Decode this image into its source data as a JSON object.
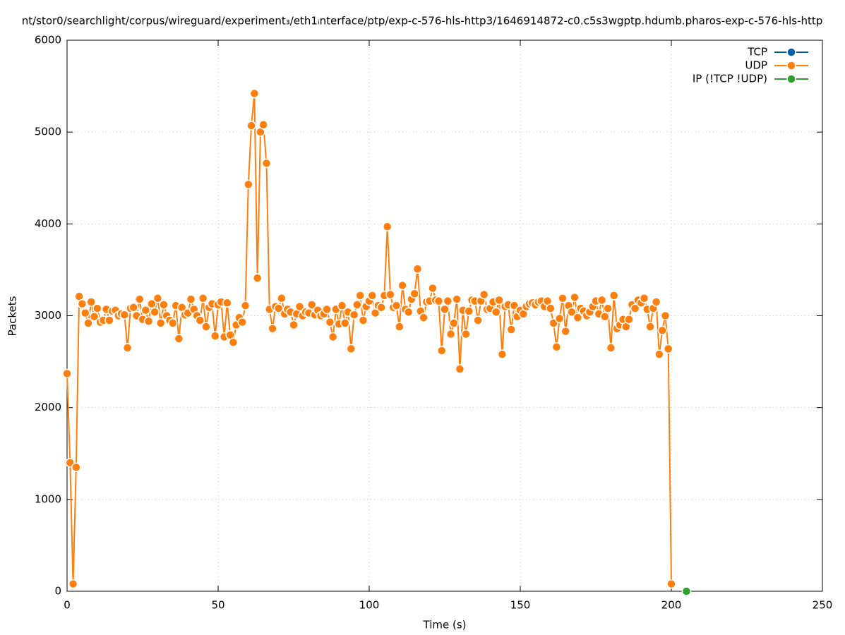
{
  "chart_data": {
    "type": "line",
    "title": "nt/stor0/searchlight/corpus/wireguard/experiment₃/eth1ᵢnterface/ptp/exp-c-576-hls-http3/1646914872-c0.c5s3wgptp.hdumb.pharos-exp-c-576-hls-http",
    "x_label": "Time (s)",
    "y_label": "Packets",
    "xlim": [
      0,
      250
    ],
    "xticks": [
      0,
      50,
      100,
      150,
      200,
      250
    ],
    "ylim": [
      0,
      6000
    ],
    "yticks": [
      0,
      1000,
      2000,
      3000,
      4000,
      5000,
      6000
    ],
    "grid": true,
    "legend": "top-right",
    "series": [
      {
        "name": "TCP",
        "color": "#0060ad",
        "x": [],
        "values": []
      },
      {
        "name": "UDP",
        "color": "#ff7f0e",
        "x": [
          0,
          1,
          2,
          3,
          4,
          5,
          6,
          7,
          8,
          9,
          10,
          11,
          12,
          13,
          14,
          15,
          16,
          17,
          18,
          19,
          20,
          21,
          22,
          23,
          24,
          25,
          26,
          27,
          28,
          29,
          30,
          31,
          32,
          33,
          34,
          35,
          36,
          37,
          38,
          39,
          40,
          41,
          42,
          43,
          44,
          45,
          46,
          47,
          48,
          49,
          50,
          51,
          52,
          53,
          54,
          55,
          56,
          57,
          58,
          59,
          60,
          61,
          62,
          63,
          64,
          65,
          66,
          67,
          68,
          69,
          70,
          71,
          72,
          73,
          74,
          75,
          76,
          77,
          78,
          79,
          80,
          81,
          82,
          83,
          84,
          85,
          86,
          87,
          88,
          89,
          90,
          91,
          92,
          93,
          94,
          95,
          96,
          97,
          98,
          99,
          100,
          101,
          102,
          103,
          104,
          105,
          106,
          107,
          108,
          109,
          110,
          111,
          112,
          113,
          114,
          115,
          116,
          117,
          118,
          119,
          120,
          121,
          122,
          123,
          124,
          125,
          126,
          127,
          128,
          129,
          130,
          131,
          132,
          133,
          134,
          135,
          136,
          137,
          138,
          139,
          140,
          141,
          142,
          143,
          144,
          145,
          146,
          147,
          148,
          149,
          150,
          151,
          152,
          153,
          154,
          155,
          156,
          157,
          158,
          159,
          160,
          161,
          162,
          163,
          164,
          165,
          166,
          167,
          168,
          169,
          170,
          171,
          172,
          173,
          174,
          175,
          176,
          177,
          178,
          179,
          180,
          181,
          182,
          183,
          184,
          185,
          186,
          187,
          188,
          189,
          190,
          191,
          192,
          193,
          194,
          195,
          196,
          197,
          198,
          199,
          200
        ],
        "values": [
          2370,
          1400,
          80,
          1350,
          3210,
          3130,
          3030,
          2920,
          3150,
          2990,
          3080,
          2930,
          2950,
          3070,
          2950,
          3050,
          3060,
          3000,
          3020,
          3010,
          2650,
          3080,
          3090,
          3000,
          3180,
          2960,
          3060,
          2940,
          3130,
          3040,
          3190,
          2920,
          3120,
          3000,
          2950,
          2920,
          3110,
          2750,
          3090,
          3010,
          3030,
          3180,
          3070,
          3000,
          2950,
          3190,
          2880,
          3090,
          3130,
          2780,
          3120,
          3150,
          2770,
          3140,
          2790,
          2710,
          2900,
          2980,
          2930,
          3110,
          4430,
          5070,
          5420,
          3410,
          5000,
          5080,
          4660,
          3070,
          2860,
          3100,
          3080,
          3190,
          3020,
          3070,
          3040,
          2900,
          3020,
          3100,
          3000,
          3040,
          3030,
          3120,
          3010,
          3060,
          3000,
          3020,
          3070,
          2930,
          2770,
          3070,
          2910,
          3110,
          2920,
          3040,
          2640,
          3010,
          3120,
          3220,
          2950,
          3100,
          3160,
          3220,
          3030,
          3110,
          3090,
          3220,
          3970,
          3230,
          3090,
          3110,
          2880,
          3330,
          3070,
          3040,
          3180,
          3240,
          3510,
          3050,
          2980,
          3150,
          3160,
          3300,
          3170,
          3160,
          2620,
          3070,
          3160,
          2800,
          2920,
          3180,
          2420,
          3060,
          2800,
          3050,
          3170,
          3160,
          2950,
          3160,
          3230,
          3070,
          3080,
          3150,
          3040,
          3170,
          2580,
          3100,
          3120,
          2850,
          3110,
          2990,
          3060,
          3020,
          3100,
          3130,
          3140,
          3120,
          3150,
          3160,
          3100,
          3160,
          3080,
          2920,
          2660,
          2970,
          3190,
          2830,
          3110,
          3040,
          3200,
          2980,
          3080,
          3050,
          3000,
          3040,
          3100,
          3160,
          3020,
          3170,
          2990,
          3080,
          2650,
          3220,
          2860,
          2900,
          2960,
          2880,
          2960,
          3120,
          3080,
          3170,
          3140,
          3190,
          3070,
          2880,
          3080,
          3150,
          2580,
          2840,
          3000,
          2640,
          80
        ]
      },
      {
        "name": "IP (!TCP  !UDP)",
        "color": "#2ca02c",
        "x": [
          205
        ],
        "values": [
          0
        ]
      }
    ]
  }
}
